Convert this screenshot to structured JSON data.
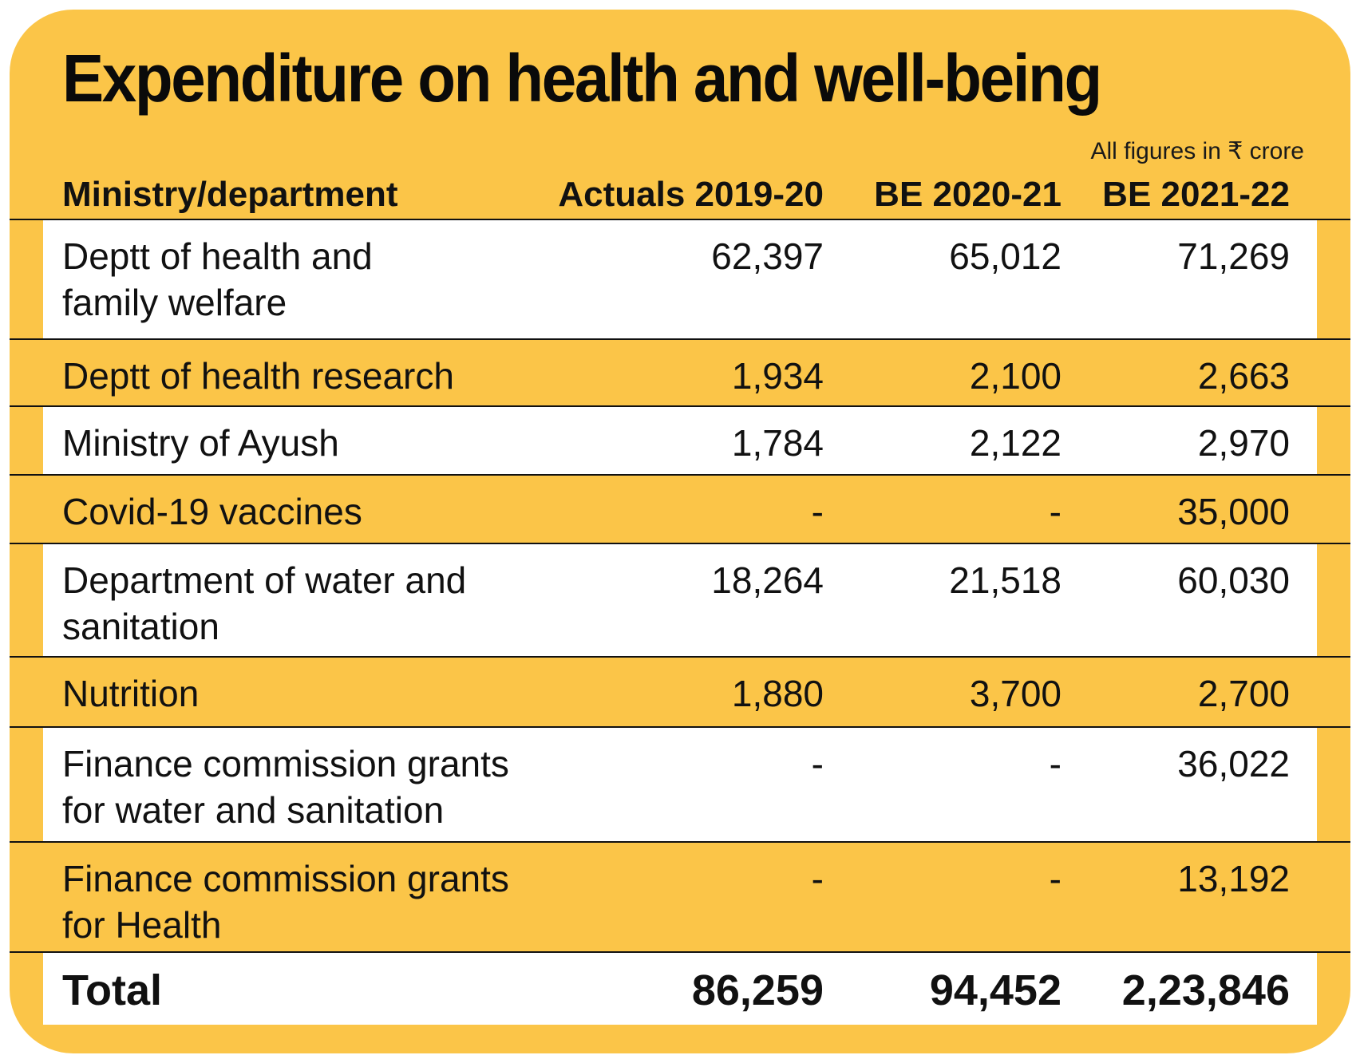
{
  "title": "Expenditure on health and well-being",
  "units_note": "All figures in ₹ crore",
  "colors": {
    "background": "#fbc548",
    "row_alt": "#ffffff",
    "text": "#111111"
  },
  "chart_data": {
    "type": "table",
    "title": "Expenditure on health and well-being",
    "note": "All figures in ₹ crore",
    "columns": [
      "Ministry/department",
      "Actuals 2019-20",
      "BE 2020-21",
      "BE 2021-22"
    ],
    "rows": [
      {
        "name": "Deptt of health and\nfamily welfare",
        "values": [
          "62,397",
          "65,012",
          "71,269"
        ],
        "shade": "white"
      },
      {
        "name": "Deptt of health research",
        "values": [
          "1,934",
          "2,100",
          "2,663"
        ],
        "shade": "yellow"
      },
      {
        "name": "Ministry of Ayush",
        "values": [
          "1,784",
          "2,122",
          "2,970"
        ],
        "shade": "white"
      },
      {
        "name": "Covid-19 vaccines",
        "values": [
          "-",
          "-",
          "35,000"
        ],
        "shade": "yellow"
      },
      {
        "name": "Department of water and\nsanitation",
        "values": [
          "18,264",
          "21,518",
          "60,030"
        ],
        "shade": "white"
      },
      {
        "name": "Nutrition",
        "values": [
          "1,880",
          "3,700",
          "2,700"
        ],
        "shade": "yellow"
      },
      {
        "name": "Finance commission grants\nfor water and sanitation",
        "values": [
          "-",
          "-",
          "36,022"
        ],
        "shade": "white"
      },
      {
        "name": "Finance commission grants\nfor Health",
        "values": [
          "-",
          "-",
          "13,192"
        ],
        "shade": "yellow"
      }
    ],
    "total": {
      "name": "Total",
      "values": [
        "86,259",
        "94,452",
        "2,23,846"
      ],
      "shade": "white"
    }
  }
}
